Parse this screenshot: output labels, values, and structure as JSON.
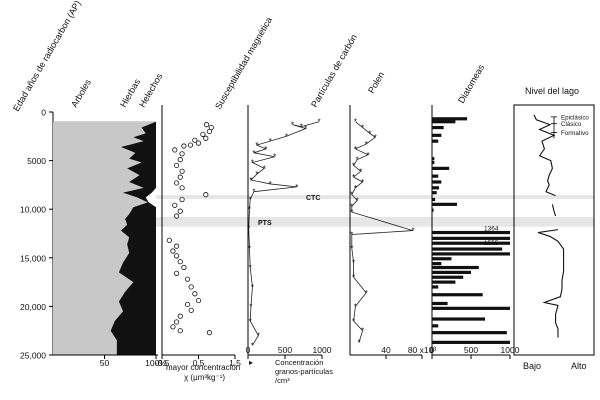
{
  "chart_data": {
    "type": "multi-panel stratigraphic diagram",
    "y_axis": {
      "label": "Edad años de radiocarbon (AP)",
      "range": [
        0,
        25000
      ],
      "ticks": [
        "0",
        "5000",
        "10,000",
        "15,000",
        "20,000",
        "25,000"
      ],
      "tick_values": [
        0,
        5000,
        10000,
        15000,
        20000,
        25000
      ],
      "inverted": true
    },
    "bands": [
      {
        "label": "CTC",
        "from": 8550,
        "to": 8950
      },
      {
        "label": "PTS",
        "from": 10800,
        "to": 11800
      }
    ],
    "panels": [
      {
        "id": "vegetation",
        "type": "area",
        "column_labels": [
          "Arboles",
          "Hierbas",
          "Helechos"
        ],
        "x_range": [
          0,
          100
        ],
        "x_ticks": [
          "50",
          "100%"
        ],
        "x_tick_values": [
          50,
          100
        ],
        "colors": {
          "arboles": "#c8c8c8",
          "hierbas": "#111111",
          "helechos": "#ffffff"
        },
        "depth": [
          1000,
          1600,
          2200,
          2600,
          3000,
          3600,
          4200,
          4800,
          5200,
          5800,
          6500,
          7200,
          7800,
          8300,
          8800,
          9300,
          9800,
          10500,
          11000,
          11600,
          12200,
          12900,
          13600,
          14500,
          15500,
          16500,
          17500,
          18500,
          19500,
          20500,
          21500,
          22500,
          23500,
          25000
        ],
        "arboles_top": [
          100,
          86,
          90,
          78,
          88,
          66,
          80,
          74,
          86,
          72,
          84,
          74,
          88,
          68,
          82,
          92,
          78,
          74,
          70,
          72,
          66,
          74,
          72,
          74,
          68,
          64,
          78,
          70,
          64,
          68,
          60,
          56,
          62,
          62
        ],
        "hierbas_top": [
          100,
          100,
          100,
          100,
          100,
          100,
          100,
          100,
          100,
          100,
          100,
          100,
          100,
          96,
          90,
          93,
          100,
          100,
          100,
          100,
          100,
          100,
          100,
          100,
          100,
          100,
          100,
          100,
          100,
          100,
          100,
          100,
          100,
          100
        ]
      },
      {
        "id": "susceptibility",
        "type": "scatter",
        "title": "Susceptibilidad magnética",
        "x_range": [
          -0.5,
          1.5
        ],
        "x_ticks": [
          "-0.5",
          "0.5",
          "1.5"
        ],
        "x_tick_values": [
          -0.5,
          0.5,
          1.5
        ],
        "footnote": [
          "mayor concentración",
          "χ (μm³kg⁻¹)"
        ],
        "points": [
          [
            0.72,
            1300
          ],
          [
            0.85,
            1600
          ],
          [
            0.8,
            2000
          ],
          [
            0.62,
            2300
          ],
          [
            0.7,
            2700
          ],
          [
            0.4,
            2900
          ],
          [
            0.5,
            3200
          ],
          [
            0.1,
            3500
          ],
          [
            0.28,
            3400
          ],
          [
            -0.15,
            3900
          ],
          [
            0.05,
            4300
          ],
          [
            0.0,
            4900
          ],
          [
            -0.1,
            5500
          ],
          [
            0.05,
            6100
          ],
          [
            0.0,
            6700
          ],
          [
            -0.1,
            7300
          ],
          [
            0.05,
            7800
          ],
          [
            0.7,
            8500
          ],
          [
            0.05,
            9000
          ],
          [
            -0.15,
            9600
          ],
          [
            0.0,
            10200
          ],
          [
            -0.1,
            10700
          ],
          [
            -0.3,
            13200
          ],
          [
            -0.1,
            13800
          ],
          [
            -0.2,
            14300
          ],
          [
            -0.1,
            14800
          ],
          [
            0.0,
            15400
          ],
          [
            0.1,
            16000
          ],
          [
            -0.1,
            16600
          ],
          [
            0.2,
            17200
          ],
          [
            0.3,
            18000
          ],
          [
            0.4,
            18700
          ],
          [
            0.5,
            19400
          ],
          [
            0.2,
            19800
          ],
          [
            0.3,
            20400
          ],
          [
            0.0,
            21000
          ],
          [
            -0.1,
            21600
          ],
          [
            -0.2,
            22100
          ],
          [
            0.0,
            22500
          ],
          [
            0.8,
            22700
          ]
        ]
      },
      {
        "id": "carbon",
        "type": "line",
        "title": "Partículas de carbón",
        "x_range": [
          0,
          1000
        ],
        "x_ticks": [
          "0",
          "500",
          "1000"
        ],
        "x_tick_values": [
          0,
          500,
          1000
        ],
        "footnote": [
          "Concentración",
          "granos-partículas",
          "/cm³"
        ],
        "points": [
          [
            960,
            1000
          ],
          [
            720,
            1500
          ],
          [
            600,
            1300
          ],
          [
            780,
            1700
          ],
          [
            520,
            2500
          ],
          [
            300,
            3000
          ],
          [
            120,
            3400
          ],
          [
            240,
            3800
          ],
          [
            80,
            4200
          ],
          [
            360,
            4600
          ],
          [
            60,
            5200
          ],
          [
            220,
            5800
          ],
          [
            120,
            6400
          ],
          [
            40,
            7000
          ],
          [
            300,
            7400
          ],
          [
            660,
            7700
          ],
          [
            80,
            8200
          ],
          [
            30,
            9000
          ],
          [
            20,
            10000
          ],
          [
            10,
            12000
          ],
          [
            20,
            14000
          ],
          [
            30,
            16000
          ],
          [
            60,
            18000
          ],
          [
            40,
            20000
          ],
          [
            30,
            21500
          ],
          [
            140,
            23000
          ],
          [
            60,
            24000
          ]
        ]
      },
      {
        "id": "polen",
        "type": "line",
        "title": "Polen",
        "x_range": [
          0,
          80
        ],
        "x_ticks": [
          "40",
          "80 x10³"
        ],
        "x_tick_values": [
          40,
          80
        ],
        "points": [
          [
            6,
            1000
          ],
          [
            14,
            1600
          ],
          [
            22,
            2200
          ],
          [
            28,
            2600
          ],
          [
            18,
            3300
          ],
          [
            6,
            3800
          ],
          [
            20,
            4400
          ],
          [
            8,
            4900
          ],
          [
            4,
            5500
          ],
          [
            12,
            6100
          ],
          [
            4,
            6700
          ],
          [
            14,
            7200
          ],
          [
            6,
            7800
          ],
          [
            2,
            8500
          ],
          [
            8,
            9100
          ],
          [
            2,
            9700
          ],
          [
            2,
            10300
          ],
          [
            70,
            12200
          ],
          [
            2,
            12600
          ],
          [
            2,
            14000
          ],
          [
            4,
            15500
          ],
          [
            4,
            17000
          ],
          [
            18,
            18600
          ],
          [
            6,
            20000
          ],
          [
            4,
            21500
          ],
          [
            14,
            22500
          ],
          [
            10,
            23700
          ]
        ]
      },
      {
        "id": "diatomeas",
        "type": "bar",
        "title": "Diatomeas",
        "x_range": [
          0,
          1000
        ],
        "x_ticks": [
          "0",
          "500",
          "1000"
        ],
        "x_tick_values": [
          0,
          500,
          1000
        ],
        "annotations": [
          {
            "text": "1364",
            "depth": 12400
          },
          {
            "text": "1555",
            "depth": 13900
          }
        ],
        "bars": [
          [
            450,
            700
          ],
          [
            300,
            1000
          ],
          [
            150,
            1600
          ],
          [
            120,
            2400
          ],
          [
            80,
            3000
          ],
          [
            30,
            4800
          ],
          [
            30,
            5200
          ],
          [
            220,
            5800
          ],
          [
            80,
            6600
          ],
          [
            120,
            7200
          ],
          [
            90,
            7800
          ],
          [
            60,
            8300
          ],
          [
            40,
            9000
          ],
          [
            320,
            9500
          ],
          [
            20,
            10100
          ],
          [
            1000,
            12400
          ],
          [
            1000,
            13000
          ],
          [
            1000,
            13500
          ],
          [
            900,
            14100
          ],
          [
            1000,
            14600
          ],
          [
            250,
            15100
          ],
          [
            120,
            15600
          ],
          [
            600,
            16000
          ],
          [
            500,
            16500
          ],
          [
            400,
            17000
          ],
          [
            300,
            17500
          ],
          [
            80,
            18000
          ],
          [
            650,
            18800
          ],
          [
            200,
            19700
          ],
          [
            1000,
            20200
          ],
          [
            680,
            21300
          ],
          [
            80,
            22000
          ],
          [
            960,
            22700
          ],
          [
            1000,
            23700
          ]
        ]
      },
      {
        "id": "nivel",
        "type": "line",
        "title": "Nivel del lago",
        "x_range": [
          0,
          1
        ],
        "x_labels": [
          "Bajo",
          "Alto"
        ],
        "periods": [
          {
            "label": "Epiclásico",
            "depth": 500
          },
          {
            "label": "Clásico",
            "depth": 1200
          },
          {
            "label": "Formativo",
            "depth": 2100
          }
        ],
        "segments": [
          [
            [
              0.25,
              300
            ],
            [
              0.28,
              800
            ],
            [
              0.45,
              1300
            ],
            [
              0.32,
              1800
            ],
            [
              0.5,
              2400
            ],
            [
              0.35,
              3000
            ],
            [
              0.38,
              3800
            ],
            [
              0.32,
              4500
            ],
            [
              0.46,
              5000
            ],
            [
              0.48,
              5800
            ],
            [
              0.44,
              6500
            ],
            [
              0.42,
              7100
            ],
            [
              0.44,
              7500
            ],
            [
              0.4,
              8200
            ],
            [
              0.52,
              8600
            ]
          ],
          [
            [
              0.48,
              9500
            ],
            [
              0.5,
              10200
            ],
            [
              0.52,
              10700
            ]
          ],
          [
            [
              0.55,
              12100
            ],
            [
              0.3,
              12400
            ],
            [
              0.45,
              12800
            ],
            [
              0.55,
              13300
            ],
            [
              0.62,
              14100
            ],
            [
              0.62,
              14800
            ],
            [
              0.62,
              15600
            ],
            [
              0.62,
              16400
            ],
            [
              0.6,
              17300
            ],
            [
              0.6,
              18200
            ],
            [
              0.58,
              19000
            ],
            [
              0.38,
              19600
            ],
            [
              0.55,
              19900
            ],
            [
              0.52,
              20800
            ],
            [
              0.52,
              21700
            ],
            [
              0.55,
              22300
            ],
            [
              0.55,
              23200
            ]
          ]
        ]
      }
    ]
  }
}
